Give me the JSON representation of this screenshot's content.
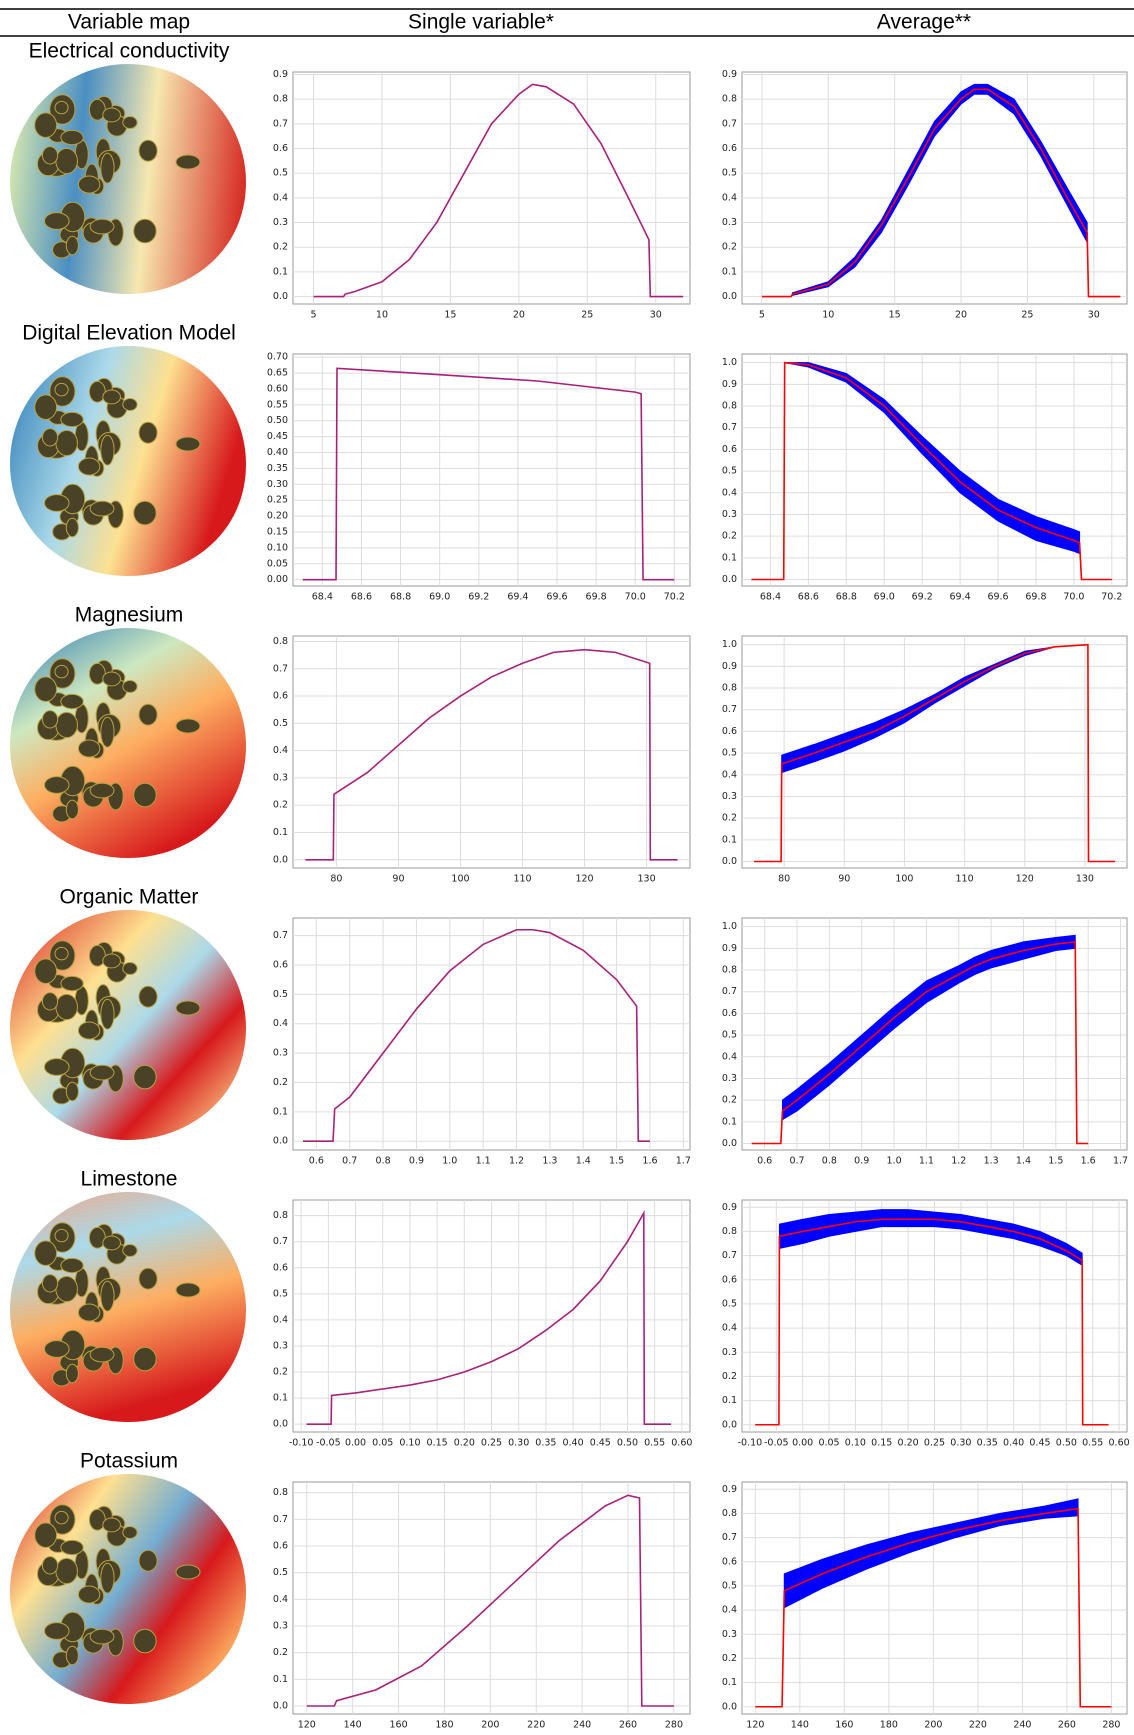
{
  "table": {
    "columns": [
      "Variable map",
      "Single variable*",
      "Average**"
    ],
    "row_labels": [
      "Electrical conductivity",
      "Digital Elevation Model",
      "Magnesium",
      "Organic Matter",
      "Limestone",
      "Potassium"
    ]
  },
  "chart_data": [
    {
      "type": "line",
      "color": "#a8207a",
      "grid": true,
      "x": [
        5,
        7.2,
        7.3,
        8,
        10,
        12,
        14,
        16,
        18,
        20,
        21,
        22,
        24,
        26,
        28,
        29.5,
        29.6,
        32
      ],
      "values": [
        0,
        0,
        0.01,
        0.02,
        0.06,
        0.15,
        0.3,
        0.5,
        0.7,
        0.82,
        0.86,
        0.85,
        0.78,
        0.62,
        0.4,
        0.23,
        0,
        0
      ],
      "xlim": [
        3.5,
        32.5
      ],
      "xticks": [
        5,
        10,
        15,
        20,
        25,
        30
      ],
      "ylim": [
        -0.03,
        0.91
      ],
      "yticks": [
        {
          "value": 0,
          "label": "0.0"
        },
        0.1,
        0.2,
        0.3,
        0.4,
        0.5,
        0.6,
        0.7,
        0.8,
        0.9
      ]
    },
    {
      "type": "band",
      "color": "#ff0000",
      "band_color": "#0000ff",
      "grid": true,
      "x": [
        5,
        7.2,
        7.3,
        10,
        12,
        14,
        16,
        18,
        20,
        21,
        22,
        24,
        26,
        28,
        29.5,
        29.6,
        32
      ],
      "values": [
        0,
        0,
        0.01,
        0.05,
        0.14,
        0.29,
        0.48,
        0.68,
        0.8,
        0.84,
        0.84,
        0.77,
        0.6,
        0.4,
        0.26,
        0,
        0
      ],
      "lower": [
        null,
        null,
        0.005,
        0.04,
        0.12,
        0.26,
        0.45,
        0.65,
        0.78,
        0.82,
        0.82,
        0.74,
        0.57,
        0.37,
        0.22,
        null,
        null
      ],
      "upper": [
        null,
        null,
        0.015,
        0.06,
        0.16,
        0.31,
        0.51,
        0.71,
        0.83,
        0.86,
        0.86,
        0.8,
        0.63,
        0.44,
        0.3,
        null,
        null
      ],
      "xlim": [
        3.5,
        32.5
      ],
      "xticks": [
        5,
        10,
        15,
        20,
        25,
        30
      ],
      "ylim": [
        -0.03,
        0.91
      ],
      "yticks": [
        {
          "value": 0,
          "label": "0.0"
        },
        0.1,
        0.2,
        0.3,
        0.4,
        0.5,
        0.6,
        0.7,
        0.8,
        0.9
      ]
    },
    {
      "type": "line",
      "color": "#a8207a",
      "grid": true,
      "x": [
        68.3,
        68.47,
        68.475,
        69.0,
        69.5,
        70.0,
        70.03,
        70.04,
        70.2
      ],
      "values": [
        0,
        0,
        0.665,
        0.645,
        0.625,
        0.59,
        0.585,
        0,
        0
      ],
      "xlim": [
        68.25,
        70.28
      ],
      "xticks": [
        68.4,
        68.6,
        68.8,
        {
          "value": 69,
          "label": "69.0"
        },
        69.2,
        69.4,
        69.6,
        69.8,
        {
          "value": 70,
          "label": "70.0"
        },
        70.2
      ],
      "ylim": [
        -0.02,
        0.71
      ],
      "yticks": [
        {
          "value": 0,
          "label": "0.00"
        },
        0.05,
        {
          "value": 0.1,
          "label": "0.10"
        },
        0.15,
        {
          "value": 0.2,
          "label": "0.20"
        },
        0.25,
        {
          "value": 0.3,
          "label": "0.30"
        },
        0.35,
        {
          "value": 0.4,
          "label": "0.40"
        },
        0.45,
        {
          "value": 0.5,
          "label": "0.50"
        },
        0.55,
        {
          "value": 0.6,
          "label": "0.60"
        },
        0.65,
        {
          "value": 0.7,
          "label": "0.70"
        }
      ]
    },
    {
      "type": "band",
      "color": "#ff0000",
      "band_color": "#0000ff",
      "grid": true,
      "x": [
        68.3,
        68.47,
        68.475,
        68.6,
        68.8,
        69.0,
        69.2,
        69.4,
        69.6,
        69.8,
        70.0,
        70.03,
        70.04,
        70.2
      ],
      "values": [
        0,
        0,
        1,
        0.99,
        0.93,
        0.8,
        0.62,
        0.45,
        0.32,
        0.24,
        0.18,
        0.17,
        0,
        0
      ],
      "lower": [
        null,
        null,
        1,
        0.98,
        0.91,
        0.77,
        0.58,
        0.4,
        0.27,
        0.18,
        0.13,
        0.12,
        null,
        null
      ],
      "upper": [
        null,
        null,
        1,
        1,
        0.95,
        0.83,
        0.66,
        0.5,
        0.37,
        0.29,
        0.23,
        0.22,
        null,
        null
      ],
      "xlim": [
        68.25,
        70.28
      ],
      "xticks": [
        68.4,
        68.6,
        68.8,
        {
          "value": 69,
          "label": "69.0"
        },
        69.2,
        69.4,
        69.6,
        69.8,
        {
          "value": 70,
          "label": "70.0"
        },
        70.2
      ],
      "ylim": [
        -0.03,
        1.04
      ],
      "yticks": [
        {
          "value": 0,
          "label": "0.0"
        },
        0.1,
        0.2,
        0.3,
        0.4,
        0.5,
        0.6,
        0.7,
        0.8,
        0.9,
        {
          "value": 1,
          "label": "1.0"
        }
      ]
    },
    {
      "type": "line",
      "color": "#a8207a",
      "grid": true,
      "x": [
        75,
        79.5,
        79.6,
        85,
        90,
        95,
        100,
        105,
        110,
        115,
        120,
        125,
        130.5,
        130.6,
        135
      ],
      "values": [
        0,
        0,
        0.24,
        0.32,
        0.42,
        0.52,
        0.6,
        0.67,
        0.72,
        0.76,
        0.77,
        0.76,
        0.72,
        0,
        0
      ],
      "xlim": [
        73,
        137
      ],
      "xticks": [
        80,
        90,
        100,
        110,
        120,
        130
      ],
      "ylim": [
        -0.03,
        0.82
      ],
      "yticks": [
        {
          "value": 0,
          "label": "0.0"
        },
        0.1,
        0.2,
        0.3,
        0.4,
        0.5,
        0.6,
        0.7,
        0.8
      ]
    },
    {
      "type": "band",
      "color": "#ff0000",
      "band_color": "#0000ff",
      "grid": true,
      "x": [
        75,
        79.5,
        79.6,
        85,
        90,
        95,
        100,
        105,
        110,
        115,
        120,
        125,
        130.5,
        130.6,
        135
      ],
      "values": [
        0,
        0,
        0.45,
        0.5,
        0.55,
        0.6,
        0.67,
        0.75,
        0.83,
        0.9,
        0.96,
        0.99,
        1,
        0,
        0
      ],
      "lower": [
        null,
        null,
        0.41,
        0.46,
        0.51,
        0.57,
        0.64,
        0.73,
        0.81,
        0.89,
        0.95,
        0.99,
        1,
        null,
        null
      ],
      "upper": [
        null,
        null,
        0.49,
        0.54,
        0.59,
        0.64,
        0.7,
        0.77,
        0.85,
        0.91,
        0.97,
        0.99,
        1,
        null,
        null
      ],
      "xlim": [
        73,
        137
      ],
      "xticks": [
        80,
        90,
        100,
        110,
        120,
        130
      ],
      "ylim": [
        -0.03,
        1.04
      ],
      "yticks": [
        {
          "value": 0,
          "label": "0.0"
        },
        0.1,
        0.2,
        0.3,
        0.4,
        0.5,
        0.6,
        0.7,
        0.8,
        0.9,
        {
          "value": 1,
          "label": "1.0"
        }
      ]
    },
    {
      "type": "line",
      "color": "#a8207a",
      "grid": true,
      "x": [
        0.56,
        0.65,
        0.655,
        0.7,
        0.8,
        0.9,
        1.0,
        1.1,
        1.2,
        1.25,
        1.3,
        1.4,
        1.5,
        1.56,
        1.565,
        1.6
      ],
      "values": [
        0,
        0,
        0.11,
        0.15,
        0.3,
        0.45,
        0.58,
        0.67,
        0.72,
        0.72,
        0.71,
        0.65,
        0.55,
        0.46,
        0,
        0
      ],
      "xlim": [
        0.53,
        1.72
      ],
      "xticks": [
        0.6,
        0.7,
        0.8,
        0.9,
        {
          "value": 1,
          "label": "1.0"
        },
        1.1,
        1.2,
        1.3,
        1.4,
        1.5,
        1.6,
        1.7
      ],
      "ylim": [
        -0.03,
        0.76
      ],
      "yticks": [
        {
          "value": 0,
          "label": "0.0"
        },
        0.1,
        0.2,
        0.3,
        0.4,
        0.5,
        0.6,
        0.7
      ]
    },
    {
      "type": "band",
      "color": "#ff0000",
      "band_color": "#0000ff",
      "grid": true,
      "x": [
        0.56,
        0.65,
        0.655,
        0.7,
        0.8,
        0.9,
        1.0,
        1.1,
        1.2,
        1.25,
        1.3,
        1.4,
        1.5,
        1.56,
        1.565,
        1.6
      ],
      "values": [
        0,
        0,
        0.15,
        0.2,
        0.32,
        0.45,
        0.58,
        0.7,
        0.78,
        0.82,
        0.85,
        0.89,
        0.92,
        0.93,
        0,
        0
      ],
      "lower": [
        null,
        null,
        0.11,
        0.15,
        0.27,
        0.4,
        0.53,
        0.65,
        0.74,
        0.78,
        0.81,
        0.85,
        0.89,
        0.9,
        null,
        null
      ],
      "upper": [
        null,
        null,
        0.2,
        0.25,
        0.37,
        0.5,
        0.63,
        0.75,
        0.82,
        0.86,
        0.89,
        0.93,
        0.95,
        0.96,
        null,
        null
      ],
      "xlim": [
        0.53,
        1.72
      ],
      "xticks": [
        0.6,
        0.7,
        0.8,
        0.9,
        {
          "value": 1,
          "label": "1.0"
        },
        1.1,
        1.2,
        1.3,
        1.4,
        1.5,
        1.6,
        1.7
      ],
      "ylim": [
        -0.03,
        1.04
      ],
      "yticks": [
        {
          "value": 0,
          "label": "0.0"
        },
        0.1,
        0.2,
        0.3,
        0.4,
        0.5,
        0.6,
        0.7,
        0.8,
        0.9,
        {
          "value": 1,
          "label": "1.0"
        }
      ]
    },
    {
      "type": "line",
      "color": "#a8207a",
      "grid": true,
      "x": [
        -0.09,
        -0.045,
        -0.044,
        0,
        0.05,
        0.1,
        0.15,
        0.2,
        0.25,
        0.3,
        0.35,
        0.4,
        0.45,
        0.5,
        0.53,
        0.531,
        0.58
      ],
      "values": [
        0,
        0,
        0.11,
        0.12,
        0.135,
        0.15,
        0.17,
        0.2,
        0.24,
        0.29,
        0.36,
        0.44,
        0.55,
        0.7,
        0.81,
        0,
        0
      ],
      "xlim": [
        -0.115,
        0.615
      ],
      "xticks": [
        {
          "value": -0.1,
          "label": "-0.10"
        },
        -0.05,
        {
          "value": 0,
          "label": "0.00"
        },
        0.05,
        {
          "value": 0.1,
          "label": "0.10"
        },
        0.15,
        {
          "value": 0.2,
          "label": "0.20"
        },
        0.25,
        {
          "value": 0.3,
          "label": "0.30"
        },
        0.35,
        {
          "value": 0.4,
          "label": "0.40"
        },
        0.45,
        {
          "value": 0.5,
          "label": "0.50"
        },
        0.55,
        {
          "value": 0.6,
          "label": "0.60"
        }
      ],
      "ylim": [
        -0.03,
        0.86
      ],
      "yticks": [
        {
          "value": 0,
          "label": "0.0"
        },
        0.1,
        0.2,
        0.3,
        0.4,
        0.5,
        0.6,
        0.7,
        0.8
      ]
    },
    {
      "type": "band",
      "color": "#ff0000",
      "band_color": "#0000ff",
      "grid": true,
      "x": [
        -0.09,
        -0.045,
        -0.044,
        0,
        0.05,
        0.1,
        0.15,
        0.2,
        0.25,
        0.3,
        0.35,
        0.4,
        0.45,
        0.5,
        0.53,
        0.531,
        0.58
      ],
      "values": [
        0,
        0,
        0.78,
        0.8,
        0.82,
        0.84,
        0.85,
        0.85,
        0.85,
        0.84,
        0.82,
        0.8,
        0.77,
        0.72,
        0.68,
        0,
        0
      ],
      "lower": [
        null,
        null,
        0.73,
        0.75,
        0.78,
        0.8,
        0.82,
        0.82,
        0.82,
        0.81,
        0.79,
        0.77,
        0.74,
        0.7,
        0.66,
        null,
        null
      ],
      "upper": [
        null,
        null,
        0.83,
        0.85,
        0.87,
        0.88,
        0.89,
        0.89,
        0.88,
        0.87,
        0.85,
        0.83,
        0.8,
        0.75,
        0.71,
        null,
        null
      ],
      "xlim": [
        -0.115,
        0.615
      ],
      "xticks": [
        {
          "value": -0.1,
          "label": "-0.10"
        },
        -0.05,
        {
          "value": 0,
          "label": "0.00"
        },
        0.05,
        {
          "value": 0.1,
          "label": "0.10"
        },
        0.15,
        {
          "value": 0.2,
          "label": "0.20"
        },
        0.25,
        {
          "value": 0.3,
          "label": "0.30"
        },
        0.35,
        {
          "value": 0.4,
          "label": "0.40"
        },
        0.45,
        {
          "value": 0.5,
          "label": "0.50"
        },
        0.55,
        {
          "value": 0.6,
          "label": "0.60"
        }
      ],
      "ylim": [
        -0.03,
        0.93
      ],
      "yticks": [
        {
          "value": 0,
          "label": "0.0"
        },
        0.1,
        0.2,
        0.3,
        0.4,
        0.5,
        0.6,
        0.7,
        0.8,
        0.9
      ]
    },
    {
      "type": "line",
      "color": "#a8207a",
      "grid": true,
      "x": [
        120,
        132,
        133,
        150,
        170,
        190,
        210,
        230,
        250,
        260,
        265,
        266,
        280
      ],
      "values": [
        0,
        0,
        0.02,
        0.06,
        0.15,
        0.3,
        0.46,
        0.62,
        0.75,
        0.79,
        0.78,
        0,
        0
      ],
      "xlim": [
        114,
        287
      ],
      "xticks": [
        120,
        140,
        160,
        180,
        200,
        220,
        240,
        260,
        280
      ],
      "ylim": [
        -0.03,
        0.84
      ],
      "yticks": [
        {
          "value": 0,
          "label": "0.0"
        },
        0.1,
        0.2,
        0.3,
        0.4,
        0.5,
        0.6,
        0.7,
        0.8
      ]
    },
    {
      "type": "band",
      "color": "#ff0000",
      "band_color": "#0000ff",
      "grid": true,
      "x": [
        120,
        132,
        133,
        150,
        170,
        190,
        210,
        230,
        250,
        265,
        266,
        280
      ],
      "values": [
        0,
        0,
        0.48,
        0.55,
        0.62,
        0.68,
        0.73,
        0.77,
        0.8,
        0.82,
        0,
        0
      ],
      "lower": [
        null,
        null,
        0.41,
        0.49,
        0.57,
        0.64,
        0.7,
        0.75,
        0.78,
        0.79,
        null,
        null
      ],
      "upper": [
        null,
        null,
        0.55,
        0.61,
        0.67,
        0.72,
        0.76,
        0.8,
        0.83,
        0.86,
        null,
        null
      ],
      "xlim": [
        114,
        287
      ],
      "xticks": [
        120,
        140,
        160,
        180,
        200,
        220,
        240,
        260,
        280
      ],
      "ylim": [
        -0.03,
        0.93
      ],
      "yticks": [
        {
          "value": 0,
          "label": "0.0"
        },
        0.1,
        0.2,
        0.3,
        0.4,
        0.5,
        0.6,
        0.7,
        0.8,
        0.9
      ]
    }
  ]
}
